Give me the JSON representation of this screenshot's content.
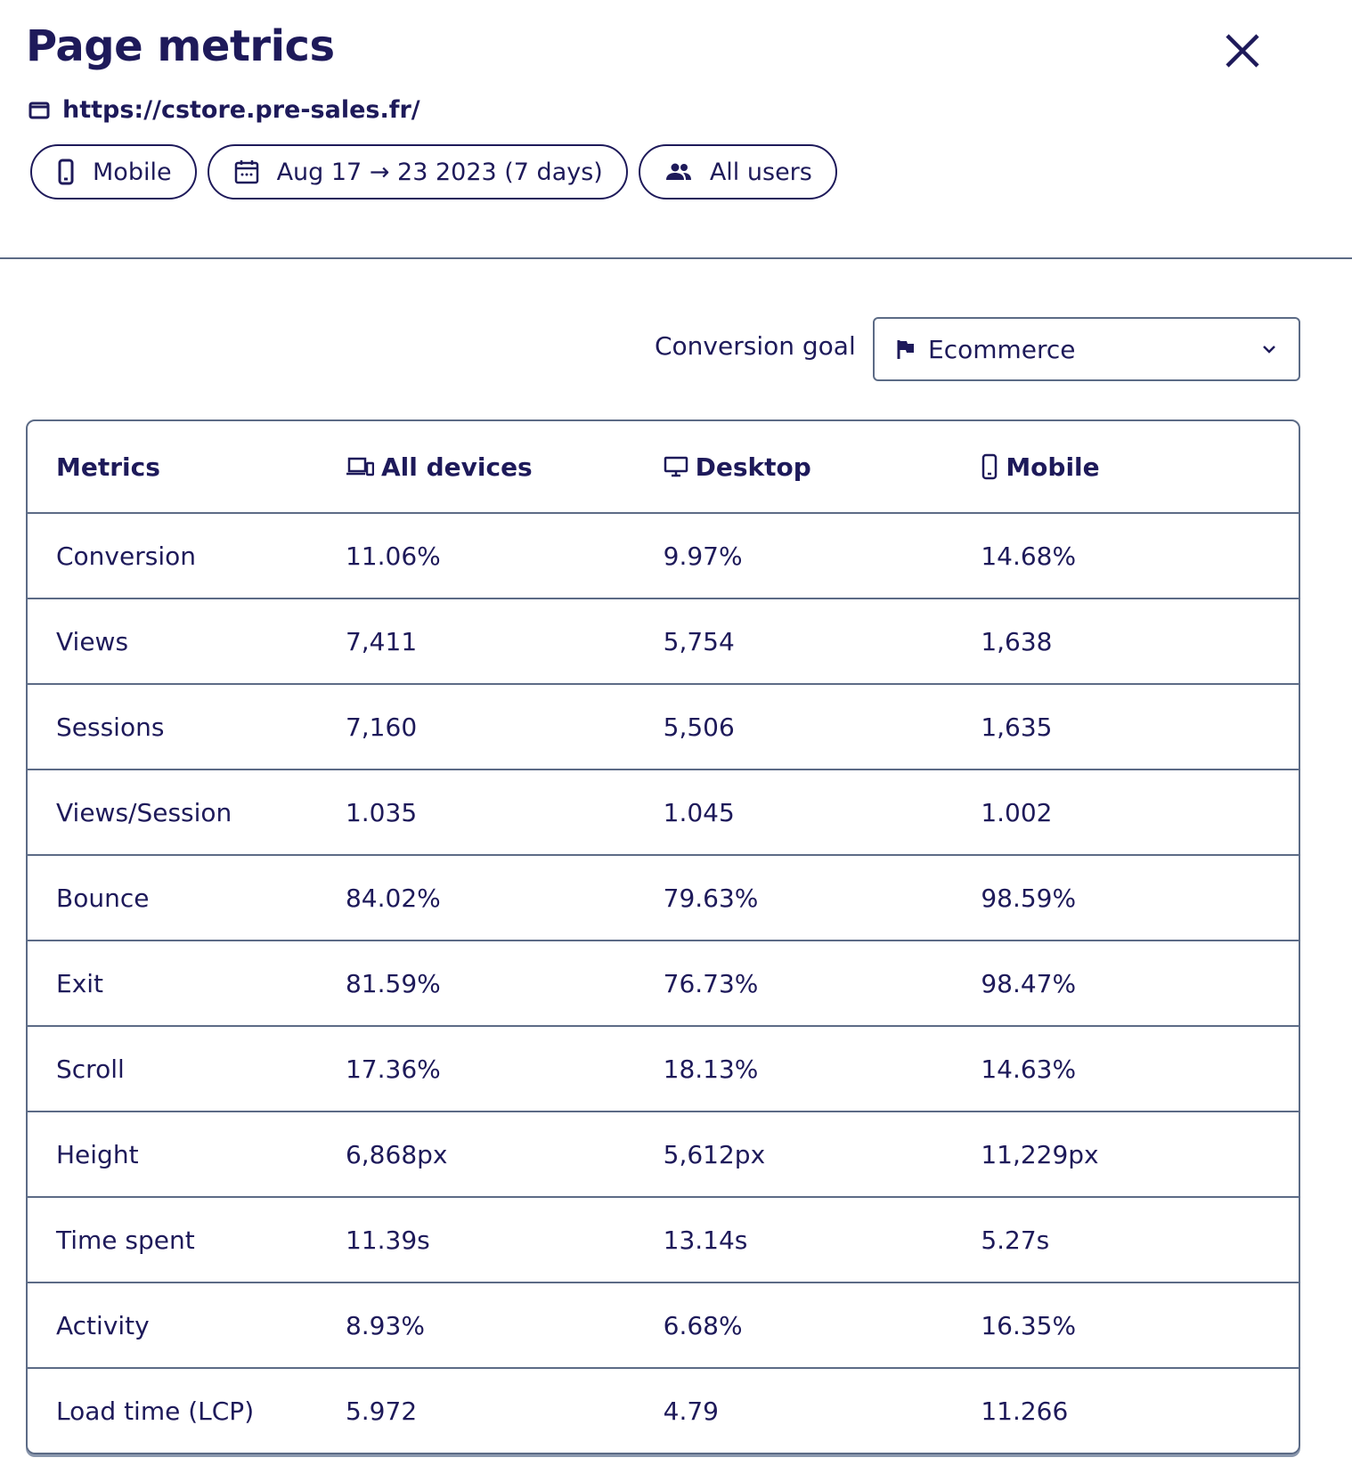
{
  "header": {
    "title": "Page metrics",
    "url": "https://cstore.pre-sales.fr/",
    "chips": [
      "Mobile",
      "Aug 17 → 23 2023 (7 days)",
      "All users"
    ]
  },
  "conversion_goal": {
    "label": "Conversion goal",
    "value": "Ecommerce"
  },
  "table": {
    "columns": [
      "Metrics",
      "All devices",
      "Desktop",
      "Mobile"
    ],
    "rows": [
      [
        "Conversion",
        "11.06%",
        "9.97%",
        "14.68%"
      ],
      [
        "Views",
        "7,411",
        "5,754",
        "1,638"
      ],
      [
        "Sessions",
        "7,160",
        "5,506",
        "1,635"
      ],
      [
        "Views/Session",
        "1.035",
        "1.045",
        "1.002"
      ],
      [
        "Bounce",
        "84.02%",
        "79.63%",
        "98.59%"
      ],
      [
        "Exit",
        "81.59%",
        "76.73%",
        "98.47%"
      ],
      [
        "Scroll",
        "17.36%",
        "18.13%",
        "14.63%"
      ],
      [
        "Height",
        "6,868px",
        "5,612px",
        "11,229px"
      ],
      [
        "Time spent",
        "11.39s",
        "13.14s",
        "5.27s"
      ],
      [
        "Activity",
        "8.93%",
        "6.68%",
        "16.35%"
      ],
      [
        "Load time (LCP)",
        "5.972",
        "4.79",
        "11.266"
      ]
    ]
  }
}
